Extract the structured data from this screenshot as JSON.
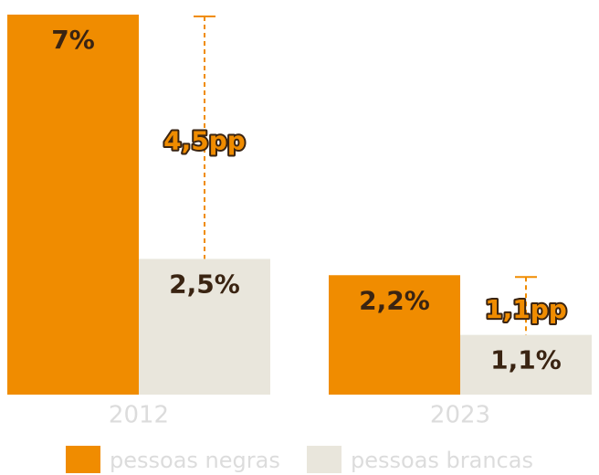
{
  "chart_data": {
    "type": "bar",
    "categories": [
      "2012",
      "2023"
    ],
    "series": [
      {
        "name": "pessoas negras",
        "color": "#f08c00",
        "values": [
          7,
          2.2
        ],
        "value_labels": [
          "7%",
          "2,2%"
        ]
      },
      {
        "name": "pessoas brancas",
        "color": "#e9e6dc",
        "values": [
          2.5,
          1.1
        ],
        "value_labels": [
          "2,5%",
          "1,1%"
        ]
      }
    ],
    "annotations": [
      "4,5pp",
      "1,1pp"
    ],
    "ylim": [
      0,
      7
    ]
  }
}
